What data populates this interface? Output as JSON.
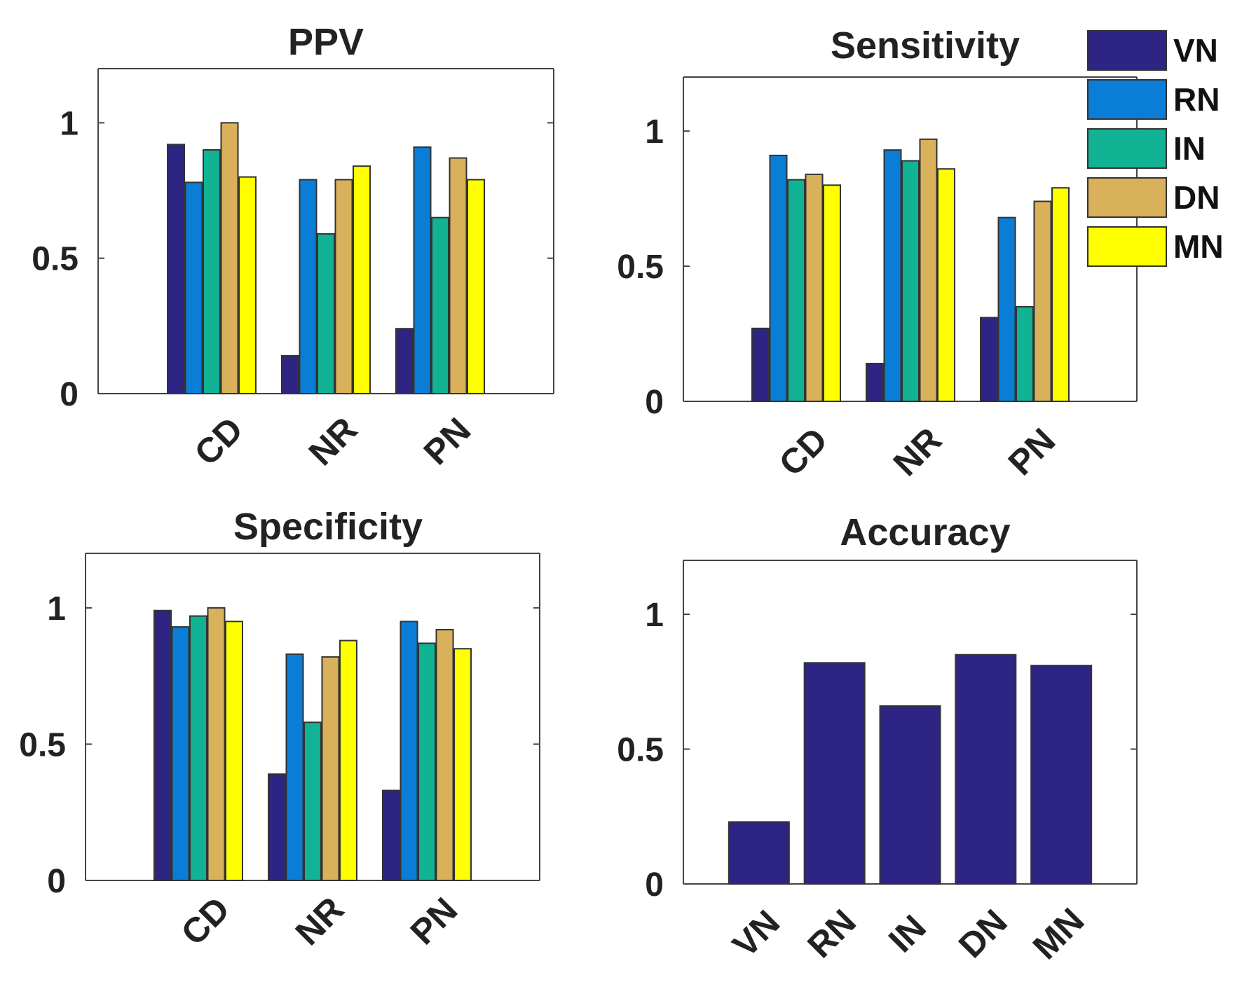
{
  "chart_data": [
    {
      "type": "bar",
      "title": "PPV",
      "categories": [
        "CD",
        "NR",
        "PN"
      ],
      "ylim": [
        0,
        1.2
      ],
      "yticks": [
        0,
        0.5,
        1
      ],
      "ytick_labels": [
        "0",
        "0.5",
        "1"
      ],
      "series": [
        {
          "name": "VN",
          "values": [
            0.92,
            0.14,
            0.24
          ]
        },
        {
          "name": "RN",
          "values": [
            0.78,
            0.79,
            0.91
          ]
        },
        {
          "name": "IN",
          "values": [
            0.9,
            0.59,
            0.65
          ]
        },
        {
          "name": "DN",
          "values": [
            1.0,
            0.79,
            0.87
          ]
        },
        {
          "name": "MN",
          "values": [
            0.8,
            0.84,
            0.79
          ]
        }
      ]
    },
    {
      "type": "bar",
      "title": "Sensitivity",
      "categories": [
        "CD",
        "NR",
        "PN"
      ],
      "ylim": [
        0,
        1.2
      ],
      "yticks": [
        0,
        0.5,
        1
      ],
      "ytick_labels": [
        "0",
        "0.5",
        "1"
      ],
      "series": [
        {
          "name": "VN",
          "values": [
            0.27,
            0.14,
            0.31
          ]
        },
        {
          "name": "RN",
          "values": [
            0.91,
            0.93,
            0.68
          ]
        },
        {
          "name": "IN",
          "values": [
            0.82,
            0.89,
            0.35
          ]
        },
        {
          "name": "DN",
          "values": [
            0.84,
            0.97,
            0.74
          ]
        },
        {
          "name": "MN",
          "values": [
            0.8,
            0.86,
            0.79
          ]
        }
      ]
    },
    {
      "type": "bar",
      "title": "Specificity",
      "categories": [
        "CD",
        "NR",
        "PN"
      ],
      "ylim": [
        0,
        1.2
      ],
      "yticks": [
        0,
        0.5,
        1
      ],
      "ytick_labels": [
        "0",
        "0.5",
        "1"
      ],
      "series": [
        {
          "name": "VN",
          "values": [
            0.99,
            0.39,
            0.33
          ]
        },
        {
          "name": "RN",
          "values": [
            0.93,
            0.83,
            0.95
          ]
        },
        {
          "name": "IN",
          "values": [
            0.97,
            0.58,
            0.87
          ]
        },
        {
          "name": "DN",
          "values": [
            1.0,
            0.82,
            0.92
          ]
        },
        {
          "name": "MN",
          "values": [
            0.95,
            0.88,
            0.85
          ]
        }
      ]
    },
    {
      "type": "bar",
      "title": "Accuracy",
      "categories": [
        "VN",
        "RN",
        "IN",
        "DN",
        "MN"
      ],
      "ylim": [
        0,
        1.2
      ],
      "yticks": [
        0,
        0.5,
        1
      ],
      "ytick_labels": [
        "0",
        "0.5",
        "1"
      ],
      "series": [
        {
          "name": "Accuracy",
          "values": [
            0.23,
            0.82,
            0.66,
            0.85,
            0.81
          ]
        }
      ]
    }
  ],
  "legend": {
    "entries": [
      "VN",
      "RN",
      "IN",
      "DN",
      "MN"
    ]
  },
  "colors": {
    "VN": "#2e2483",
    "RN": "#0a7ed6",
    "IN": "#12b294",
    "DN": "#d9b15a",
    "MN": "#ffff00"
  }
}
